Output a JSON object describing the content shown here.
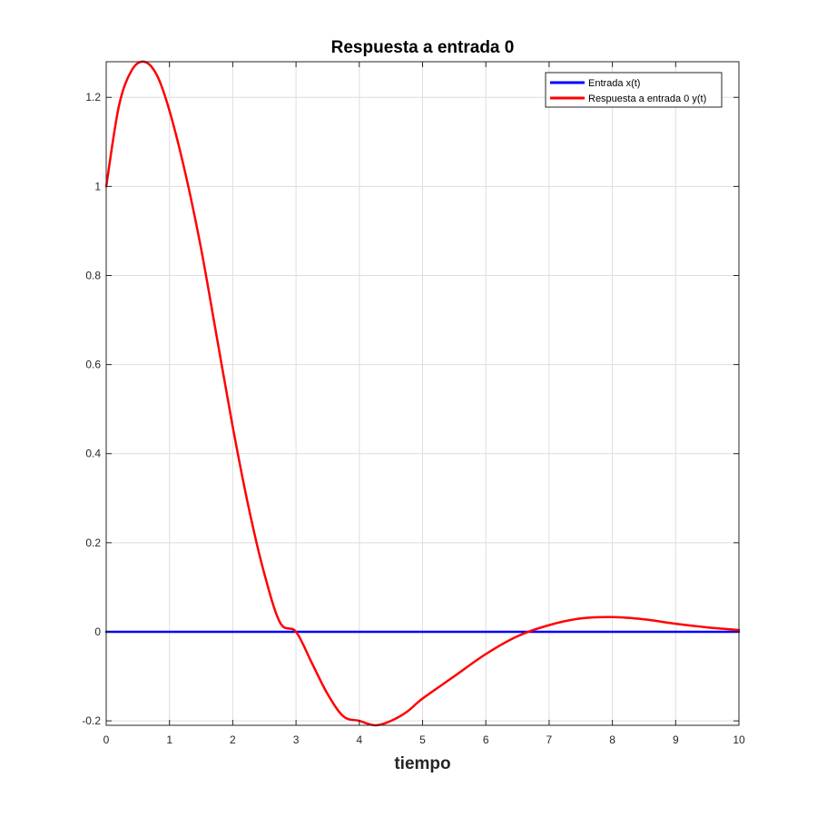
{
  "chart_data": {
    "type": "line",
    "title": "Respuesta a entrada 0",
    "xlabel": "tiempo",
    "ylabel": "",
    "xlim": [
      0,
      10
    ],
    "ylim": [
      -0.21,
      1.28
    ],
    "xticks": [
      0,
      1,
      2,
      3,
      4,
      5,
      6,
      7,
      8,
      9,
      10
    ],
    "yticks": [
      -0.2,
      0,
      0.2,
      0.4,
      0.6,
      0.8,
      1,
      1.2
    ],
    "xtick_labels": [
      "0",
      "1",
      "2",
      "3",
      "4",
      "5",
      "6",
      "7",
      "8",
      "9",
      "10"
    ],
    "ytick_labels": [
      "-0.2",
      "0",
      "0.2",
      "0.4",
      "0.6",
      "0.8",
      "1",
      "1.2"
    ],
    "grid": true,
    "legend_position": "top-right",
    "series": [
      {
        "name": "Entrada x(t)",
        "color": "#0000ff",
        "x": [
          0,
          10
        ],
        "y": [
          0,
          0
        ]
      },
      {
        "name": "Respuesta a entrada 0 y(t)",
        "color": "#ff0000",
        "x": [
          0,
          0.2,
          0.4,
          0.6,
          0.8,
          1.0,
          1.25,
          1.5,
          1.75,
          2.0,
          2.25,
          2.5,
          2.75,
          3.0,
          3.25,
          3.5,
          3.75,
          4.0,
          4.25,
          4.5,
          4.75,
          5.0,
          5.5,
          6.0,
          6.5,
          7.0,
          7.5,
          8.0,
          8.5,
          9.0,
          9.5,
          10.0
        ],
        "y": [
          1.0,
          1.18,
          1.26,
          1.28,
          1.25,
          1.17,
          1.03,
          0.86,
          0.66,
          0.46,
          0.28,
          0.13,
          0.02,
          0.0,
          -0.07,
          -0.14,
          -0.19,
          -0.2,
          -0.21,
          -0.2,
          -0.18,
          -0.15,
          -0.1,
          -0.05,
          -0.01,
          0.015,
          0.03,
          0.033,
          0.028,
          0.018,
          0.01,
          0.004
        ]
      }
    ]
  }
}
